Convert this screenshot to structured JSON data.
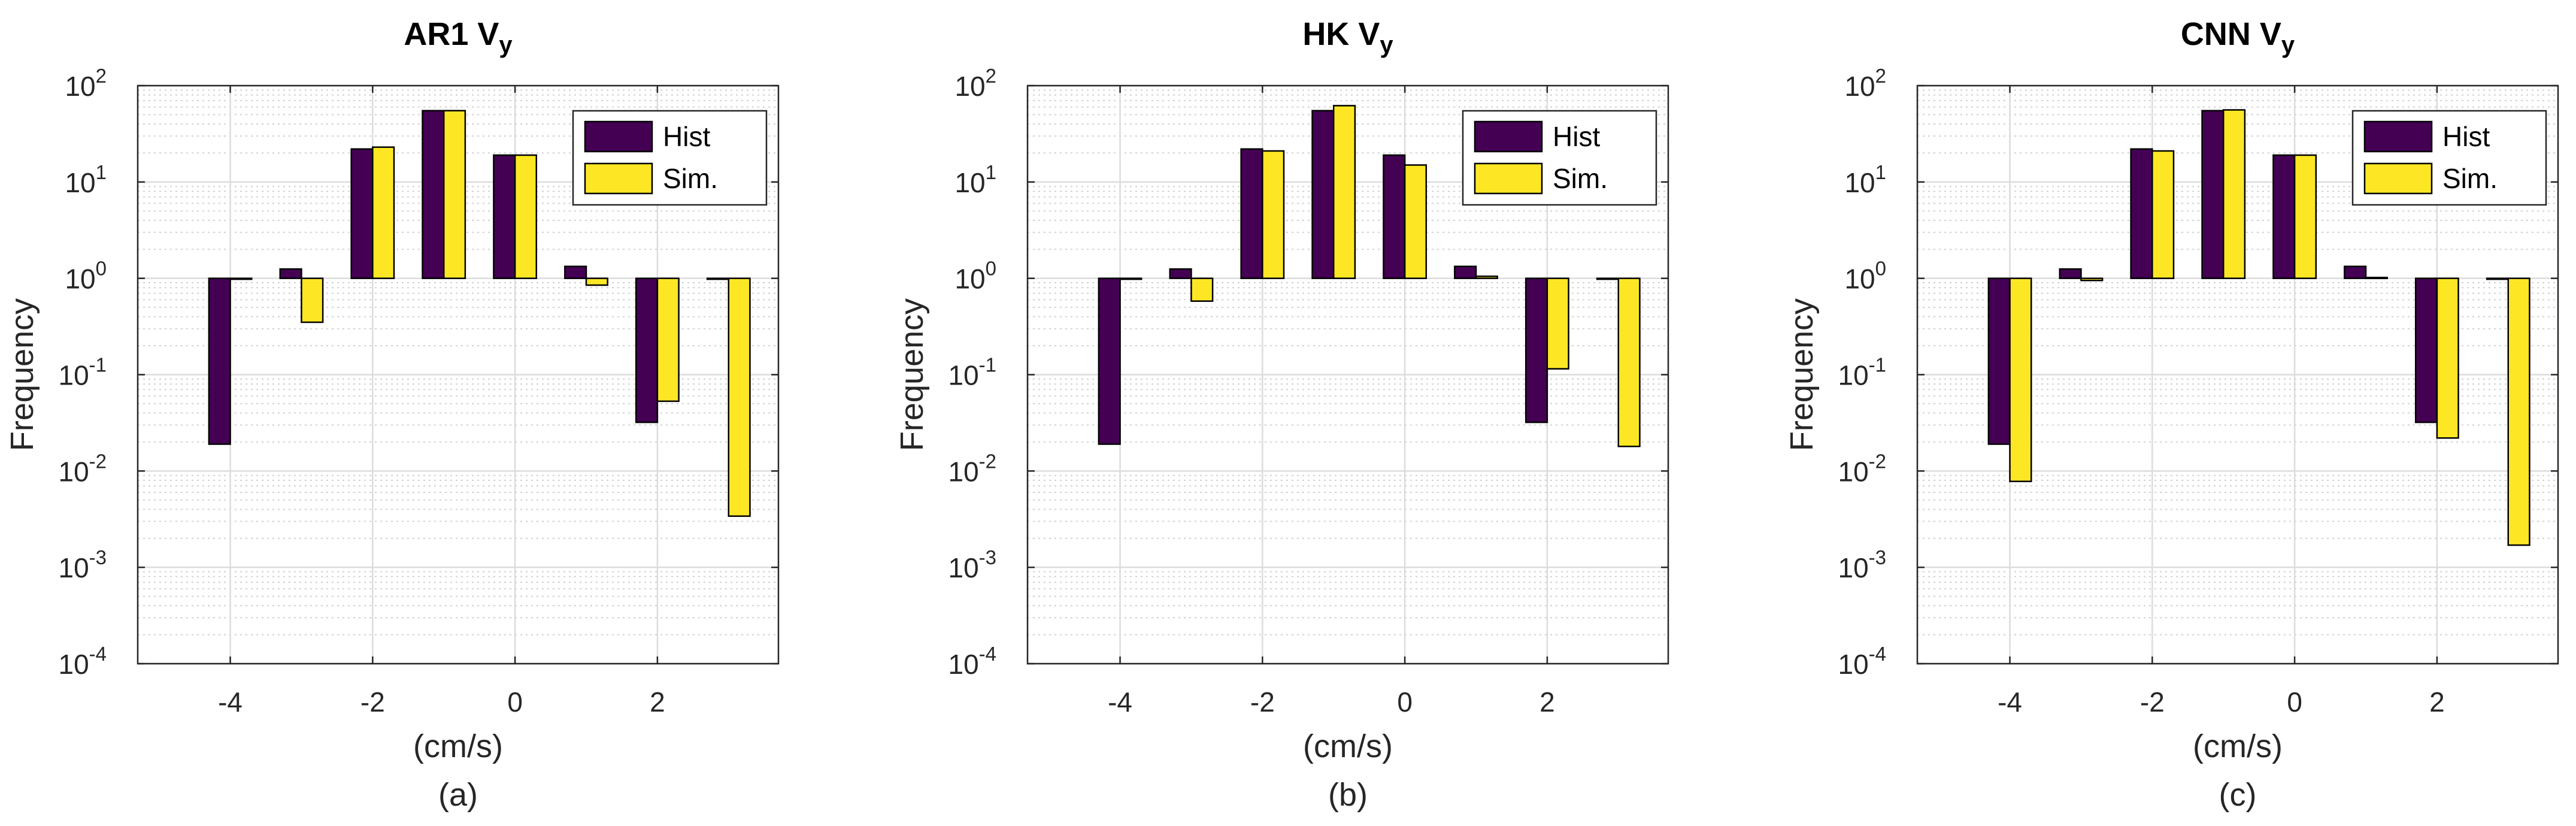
{
  "colors": {
    "hist": "#440154",
    "sim": "#fde725",
    "edge": "#000000"
  },
  "chart_data": [
    {
      "type": "bar",
      "title": "AR1 V",
      "title_sub": "y",
      "xlabel": "(cm/s)",
      "ylabel": "Frequency",
      "caption": "(a)",
      "yscale": "log",
      "ylim": [
        0.0001,
        100
      ],
      "xlim": [
        -5.3,
        3.7
      ],
      "xticks": [
        -4,
        -2,
        0,
        2
      ],
      "xtick_labels": [
        "-4",
        "-2",
        "0",
        "2"
      ],
      "yticks": [
        {
          "base": "10",
          "exp": "-4"
        },
        {
          "base": "10",
          "exp": "-3"
        },
        {
          "base": "10",
          "exp": "-2"
        },
        {
          "base": "10",
          "exp": "-1"
        },
        {
          "base": "10",
          "exp": "0"
        },
        {
          "base": "10",
          "exp": "1"
        },
        {
          "base": "10",
          "exp": "2"
        }
      ],
      "grid": true,
      "legend": "top-right",
      "bar_baseline": 1,
      "categories": [
        -4,
        -3,
        -2,
        -1,
        0,
        1,
        2,
        3
      ],
      "series": [
        {
          "name": "Hist",
          "values": [
            0.019,
            1.25,
            22,
            55,
            19,
            1.33,
            0.032,
            1
          ]
        },
        {
          "name": "Sim.",
          "values": [
            1,
            0.35,
            23,
            55,
            19,
            0.85,
            0.053,
            0.0034
          ]
        }
      ]
    },
    {
      "type": "bar",
      "title": "HK V",
      "title_sub": "y",
      "xlabel": "(cm/s)",
      "ylabel": "Frequency",
      "caption": "(b)",
      "yscale": "log",
      "ylim": [
        0.0001,
        100
      ],
      "xlim": [
        -5.3,
        3.7
      ],
      "xticks": [
        -4,
        -2,
        0,
        2
      ],
      "xtick_labels": [
        "-4",
        "-2",
        "0",
        "2"
      ],
      "yticks": [
        {
          "base": "10",
          "exp": "-4"
        },
        {
          "base": "10",
          "exp": "-3"
        },
        {
          "base": "10",
          "exp": "-2"
        },
        {
          "base": "10",
          "exp": "-1"
        },
        {
          "base": "10",
          "exp": "0"
        },
        {
          "base": "10",
          "exp": "1"
        },
        {
          "base": "10",
          "exp": "2"
        }
      ],
      "grid": true,
      "legend": "top-right",
      "bar_baseline": 1,
      "categories": [
        -4,
        -3,
        -2,
        -1,
        0,
        1,
        2,
        3
      ],
      "series": [
        {
          "name": "Hist",
          "values": [
            0.019,
            1.25,
            22,
            55,
            19,
            1.33,
            0.032,
            1
          ]
        },
        {
          "name": "Sim.",
          "values": [
            1,
            0.58,
            21,
            62,
            15,
            1.05,
            0.115,
            0.018
          ]
        }
      ]
    },
    {
      "type": "bar",
      "title": "CNN V",
      "title_sub": "y",
      "xlabel": "(cm/s)",
      "ylabel": "Frequency",
      "caption": "(c)",
      "yscale": "log",
      "ylim": [
        0.0001,
        100
      ],
      "xlim": [
        -5.3,
        3.7
      ],
      "xticks": [
        -4,
        -2,
        0,
        2
      ],
      "xtick_labels": [
        "-4",
        "-2",
        "0",
        "2"
      ],
      "yticks": [
        {
          "base": "10",
          "exp": "-4"
        },
        {
          "base": "10",
          "exp": "-3"
        },
        {
          "base": "10",
          "exp": "-2"
        },
        {
          "base": "10",
          "exp": "-1"
        },
        {
          "base": "10",
          "exp": "0"
        },
        {
          "base": "10",
          "exp": "1"
        },
        {
          "base": "10",
          "exp": "2"
        }
      ],
      "grid": true,
      "legend": "top-right",
      "bar_baseline": 1,
      "categories": [
        -4,
        -3,
        -2,
        -1,
        0,
        1,
        2,
        3
      ],
      "series": [
        {
          "name": "Hist",
          "values": [
            0.019,
            1.25,
            22,
            55,
            19,
            1.33,
            0.032,
            1
          ]
        },
        {
          "name": "Sim.",
          "values": [
            0.0078,
            0.95,
            21,
            56,
            19,
            1.02,
            0.022,
            0.0017
          ]
        }
      ]
    }
  ]
}
